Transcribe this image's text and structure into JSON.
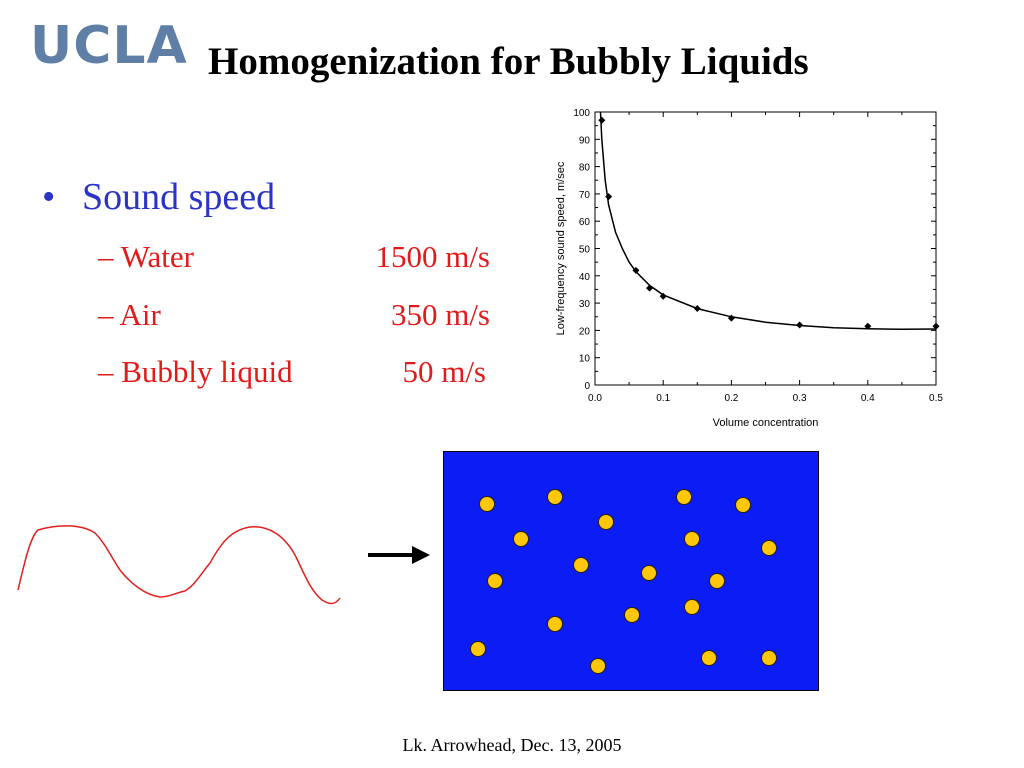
{
  "slide": {
    "logo": "UCLA",
    "title": "Homogenization for Bubbly Liquids",
    "bullet": "Sound speed",
    "items": [
      {
        "label": "– Water",
        "value": "1500 m/s"
      },
      {
        "label": "– Air",
        "value": "350 m/s"
      },
      {
        "label": "– Bubbly liquid",
        "value": "50 m/s"
      }
    ],
    "footer": "Lk. Arrowhead, Dec. 13, 2005",
    "box_color": "#0b1cf5",
    "bubble_color": "#ffc70a",
    "text_red": "#e21a1a",
    "text_blue": "#2c34c8"
  },
  "chart_data": {
    "type": "scatter",
    "xlabel": "Volume concentration",
    "ylabel": "Low-frequency sound speed, m/sec",
    "xlim": [
      0,
      0.5
    ],
    "ylim": [
      0,
      100
    ],
    "x_ticks": [
      "0.0",
      "0.1",
      "0.2",
      "0.3",
      "0.4",
      "0.5"
    ],
    "y_ticks": [
      "0",
      "10",
      "20",
      "30",
      "40",
      "50",
      "60",
      "70",
      "80",
      "90",
      "100"
    ],
    "points": [
      [
        0.01,
        97
      ],
      [
        0.02,
        69
      ],
      [
        0.06,
        42
      ],
      [
        0.08,
        35.5
      ],
      [
        0.1,
        32.5
      ],
      [
        0.15,
        28
      ],
      [
        0.2,
        24.5
      ],
      [
        0.3,
        22
      ],
      [
        0.4,
        21.5
      ],
      [
        0.5,
        21.5
      ]
    ],
    "fit_curve": [
      [
        0.008,
        100
      ],
      [
        0.01,
        90
      ],
      [
        0.015,
        75
      ],
      [
        0.02,
        66
      ],
      [
        0.03,
        56
      ],
      [
        0.04,
        50
      ],
      [
        0.05,
        45
      ],
      [
        0.06,
        41.5
      ],
      [
        0.08,
        36.5
      ],
      [
        0.1,
        33
      ],
      [
        0.15,
        28
      ],
      [
        0.2,
        25
      ],
      [
        0.25,
        23
      ],
      [
        0.3,
        21.8
      ],
      [
        0.35,
        21
      ],
      [
        0.4,
        20.6
      ],
      [
        0.45,
        20.4
      ],
      [
        0.5,
        20.5
      ]
    ],
    "grid": false
  }
}
